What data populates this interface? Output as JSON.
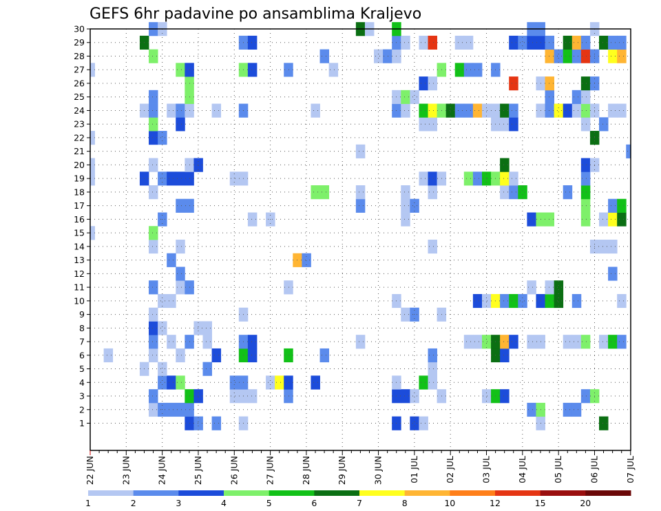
{
  "chart_data": {
    "type": "heatmap",
    "title": "GEFS 6hr padavine po ansamblima Kraljevo",
    "xlabel": "",
    "ylabel": "",
    "y_ticks": [
      "1",
      "2",
      "3",
      "4",
      "5",
      "6",
      "7",
      "8",
      "9",
      "10",
      "11",
      "12",
      "13",
      "14",
      "15",
      "16",
      "17",
      "18",
      "19",
      "20",
      "21",
      "22",
      "23",
      "24",
      "25",
      "26",
      "27",
      "28",
      "29",
      "30"
    ],
    "x_ticks": [
      "22 JUN",
      "23 JUN",
      "24 JUN",
      "25 JUN",
      "26 JUN",
      "27 JUN",
      "28 JUN",
      "29 JUN",
      "30 JUN",
      "01 JUL",
      "02 JUL",
      "03 JUL",
      "04 JUL",
      "05 JUL",
      "06 JUL",
      "07 JUL"
    ],
    "x_steps_per_day": 4,
    "x_range_steps": [
      0,
      60
    ],
    "y_range": [
      0,
      30
    ],
    "grid": true,
    "legend": "bottom",
    "legend_labels": [
      "1",
      "2",
      "3",
      "4",
      "5",
      "6",
      "7",
      "8",
      "10",
      "12",
      "15",
      "20"
    ],
    "color_scale": [
      "#b4c7f2",
      "#5b8bec",
      "#1c4cda",
      "#7ef06a",
      "#12c118",
      "#0b6f13",
      "#ffff1e",
      "#ffb533",
      "#ff7f1a",
      "#e53513",
      "#9a0f0f",
      "#6b0808"
    ],
    "cells_note": "each row: [member, time step, class] where class indexes color_scale",
    "cells": [
      [
        1,
        11,
        2
      ],
      [
        1,
        12,
        1
      ],
      [
        1,
        14,
        1
      ],
      [
        1,
        17,
        0
      ],
      [
        1,
        34,
        2
      ],
      [
        1,
        36,
        2
      ],
      [
        1,
        37,
        0
      ],
      [
        1,
        50,
        0
      ],
      [
        1,
        57,
        5
      ],
      [
        2,
        7,
        0
      ],
      [
        2,
        8,
        1
      ],
      [
        2,
        9,
        1
      ],
      [
        2,
        10,
        1
      ],
      [
        2,
        11,
        1
      ],
      [
        2,
        49,
        1
      ],
      [
        2,
        50,
        3
      ],
      [
        2,
        53,
        1
      ],
      [
        2,
        54,
        1
      ],
      [
        3,
        7,
        1
      ],
      [
        3,
        11,
        4
      ],
      [
        3,
        12,
        2
      ],
      [
        3,
        16,
        0
      ],
      [
        3,
        17,
        0
      ],
      [
        3,
        18,
        0
      ],
      [
        3,
        22,
        1
      ],
      [
        3,
        34,
        2
      ],
      [
        3,
        35,
        2
      ],
      [
        3,
        36,
        0
      ],
      [
        3,
        39,
        0
      ],
      [
        3,
        44,
        0
      ],
      [
        3,
        45,
        4
      ],
      [
        3,
        46,
        2
      ],
      [
        3,
        55,
        1
      ],
      [
        3,
        56,
        3
      ],
      [
        4,
        8,
        1
      ],
      [
        4,
        9,
        2
      ],
      [
        4,
        10,
        3
      ],
      [
        4,
        16,
        1
      ],
      [
        4,
        17,
        1
      ],
      [
        4,
        20,
        0
      ],
      [
        4,
        21,
        6
      ],
      [
        4,
        22,
        2
      ],
      [
        4,
        25,
        2
      ],
      [
        4,
        34,
        0
      ],
      [
        4,
        37,
        4
      ],
      [
        4,
        38,
        0
      ],
      [
        5,
        6,
        0
      ],
      [
        5,
        8,
        0
      ],
      [
        5,
        13,
        1
      ],
      [
        5,
        38,
        0
      ],
      [
        6,
        2,
        0
      ],
      [
        6,
        7,
        0
      ],
      [
        6,
        10,
        0
      ],
      [
        6,
        14,
        2
      ],
      [
        6,
        17,
        4
      ],
      [
        6,
        18,
        2
      ],
      [
        6,
        22,
        4
      ],
      [
        6,
        26,
        1
      ],
      [
        6,
        38,
        1
      ],
      [
        6,
        45,
        5
      ],
      [
        6,
        46,
        2
      ],
      [
        7,
        7,
        1
      ],
      [
        7,
        9,
        0
      ],
      [
        7,
        11,
        1
      ],
      [
        7,
        13,
        0
      ],
      [
        7,
        17,
        1
      ],
      [
        7,
        18,
        2
      ],
      [
        7,
        30,
        0
      ],
      [
        7,
        42,
        0
      ],
      [
        7,
        43,
        0
      ],
      [
        7,
        44,
        3
      ],
      [
        7,
        45,
        5
      ],
      [
        7,
        46,
        7
      ],
      [
        7,
        47,
        2
      ],
      [
        7,
        49,
        0
      ],
      [
        7,
        50,
        0
      ],
      [
        7,
        53,
        0
      ],
      [
        7,
        54,
        0
      ],
      [
        7,
        55,
        3
      ],
      [
        7,
        57,
        0
      ],
      [
        7,
        58,
        4
      ],
      [
        7,
        59,
        1
      ],
      [
        8,
        7,
        2
      ],
      [
        8,
        8,
        0
      ],
      [
        8,
        12,
        0
      ],
      [
        8,
        13,
        0
      ],
      [
        9,
        7,
        0
      ],
      [
        9,
        17,
        0
      ],
      [
        9,
        35,
        0
      ],
      [
        9,
        36,
        1
      ],
      [
        9,
        39,
        0
      ],
      [
        10,
        8,
        0
      ],
      [
        10,
        9,
        0
      ],
      [
        10,
        34,
        0
      ],
      [
        10,
        43,
        2
      ],
      [
        10,
        44,
        0
      ],
      [
        10,
        45,
        6
      ],
      [
        10,
        46,
        1
      ],
      [
        10,
        47,
        4
      ],
      [
        10,
        48,
        1
      ],
      [
        10,
        50,
        2
      ],
      [
        10,
        51,
        4
      ],
      [
        10,
        52,
        5
      ],
      [
        10,
        54,
        1
      ],
      [
        10,
        59,
        0
      ],
      [
        11,
        7,
        1
      ],
      [
        11,
        10,
        0
      ],
      [
        11,
        11,
        1
      ],
      [
        11,
        22,
        0
      ],
      [
        11,
        49,
        0
      ],
      [
        11,
        51,
        0
      ],
      [
        11,
        52,
        5
      ],
      [
        12,
        10,
        1
      ],
      [
        12,
        58,
        1
      ],
      [
        13,
        9,
        1
      ],
      [
        13,
        23,
        7
      ],
      [
        13,
        24,
        1
      ],
      [
        14,
        7,
        0
      ],
      [
        14,
        10,
        0
      ],
      [
        14,
        38,
        0
      ],
      [
        14,
        56,
        0
      ],
      [
        14,
        57,
        0
      ],
      [
        14,
        58,
        0
      ],
      [
        15,
        0,
        0
      ],
      [
        15,
        7,
        3
      ],
      [
        16,
        8,
        1
      ],
      [
        16,
        18,
        0
      ],
      [
        16,
        20,
        0
      ],
      [
        16,
        35,
        0
      ],
      [
        16,
        49,
        2
      ],
      [
        16,
        50,
        3
      ],
      [
        16,
        51,
        3
      ],
      [
        16,
        55,
        3
      ],
      [
        16,
        57,
        0
      ],
      [
        16,
        58,
        6
      ],
      [
        16,
        59,
        5
      ],
      [
        17,
        10,
        1
      ],
      [
        17,
        11,
        1
      ],
      [
        17,
        30,
        1
      ],
      [
        17,
        35,
        0
      ],
      [
        17,
        36,
        1
      ],
      [
        17,
        55,
        3
      ],
      [
        17,
        58,
        1
      ],
      [
        17,
        59,
        4
      ],
      [
        18,
        7,
        0
      ],
      [
        18,
        25,
        3
      ],
      [
        18,
        26,
        3
      ],
      [
        18,
        30,
        0
      ],
      [
        18,
        35,
        0
      ],
      [
        18,
        38,
        0
      ],
      [
        18,
        46,
        0
      ],
      [
        18,
        47,
        1
      ],
      [
        18,
        48,
        4
      ],
      [
        18,
        53,
        1
      ],
      [
        18,
        55,
        4
      ],
      [
        19,
        0,
        0
      ],
      [
        19,
        6,
        2
      ],
      [
        19,
        8,
        1
      ],
      [
        19,
        9,
        2
      ],
      [
        19,
        10,
        2
      ],
      [
        19,
        11,
        2
      ],
      [
        19,
        16,
        0
      ],
      [
        19,
        17,
        0
      ],
      [
        19,
        37,
        0
      ],
      [
        19,
        38,
        2
      ],
      [
        19,
        39,
        0
      ],
      [
        19,
        42,
        3
      ],
      [
        19,
        43,
        1
      ],
      [
        19,
        44,
        4
      ],
      [
        19,
        45,
        3
      ],
      [
        19,
        46,
        6
      ],
      [
        19,
        47,
        0
      ],
      [
        19,
        55,
        1
      ],
      [
        20,
        0,
        0
      ],
      [
        20,
        7,
        0
      ],
      [
        20,
        11,
        0
      ],
      [
        20,
        12,
        2
      ],
      [
        20,
        46,
        5
      ],
      [
        20,
        55,
        2
      ],
      [
        20,
        56,
        0
      ],
      [
        21,
        30,
        0
      ],
      [
        21,
        60,
        1
      ],
      [
        22,
        0,
        0
      ],
      [
        22,
        7,
        2
      ],
      [
        22,
        8,
        1
      ],
      [
        22,
        56,
        5
      ],
      [
        23,
        7,
        3
      ],
      [
        23,
        10,
        2
      ],
      [
        23,
        37,
        0
      ],
      [
        23,
        38,
        0
      ],
      [
        23,
        45,
        0
      ],
      [
        23,
        46,
        0
      ],
      [
        23,
        47,
        2
      ],
      [
        23,
        55,
        0
      ],
      [
        23,
        57,
        1
      ],
      [
        24,
        6,
        0
      ],
      [
        24,
        7,
        1
      ],
      [
        24,
        9,
        0
      ],
      [
        24,
        10,
        1
      ],
      [
        24,
        11,
        0
      ],
      [
        24,
        14,
        0
      ],
      [
        24,
        17,
        1
      ],
      [
        24,
        25,
        0
      ],
      [
        24,
        34,
        1
      ],
      [
        24,
        35,
        0
      ],
      [
        24,
        37,
        4
      ],
      [
        24,
        38,
        6
      ],
      [
        24,
        39,
        3
      ],
      [
        24,
        40,
        5
      ],
      [
        24,
        41,
        1
      ],
      [
        24,
        42,
        1
      ],
      [
        24,
        43,
        7
      ],
      [
        24,
        44,
        0
      ],
      [
        24,
        45,
        0
      ],
      [
        24,
        46,
        5
      ],
      [
        24,
        47,
        1
      ],
      [
        24,
        50,
        0
      ],
      [
        24,
        51,
        1
      ],
      [
        24,
        52,
        6
      ],
      [
        24,
        53,
        2
      ],
      [
        24,
        54,
        0
      ],
      [
        24,
        55,
        3
      ],
      [
        24,
        56,
        0
      ],
      [
        24,
        58,
        0
      ],
      [
        24,
        59,
        0
      ],
      [
        25,
        7,
        1
      ],
      [
        25,
        11,
        3
      ],
      [
        25,
        34,
        0
      ],
      [
        25,
        35,
        3
      ],
      [
        25,
        36,
        0
      ],
      [
        25,
        51,
        1
      ],
      [
        25,
        54,
        1
      ],
      [
        25,
        55,
        0
      ],
      [
        26,
        11,
        3
      ],
      [
        26,
        37,
        2
      ],
      [
        26,
        38,
        0
      ],
      [
        26,
        47,
        9
      ],
      [
        26,
        50,
        0
      ],
      [
        26,
        51,
        7
      ],
      [
        26,
        55,
        5
      ],
      [
        26,
        56,
        1
      ],
      [
        27,
        0,
        0
      ],
      [
        27,
        10,
        3
      ],
      [
        27,
        11,
        2
      ],
      [
        27,
        17,
        3
      ],
      [
        27,
        18,
        2
      ],
      [
        27,
        22,
        1
      ],
      [
        27,
        27,
        0
      ],
      [
        27,
        39,
        3
      ],
      [
        27,
        41,
        4
      ],
      [
        27,
        42,
        1
      ],
      [
        27,
        43,
        1
      ],
      [
        27,
        45,
        1
      ],
      [
        28,
        7,
        3
      ],
      [
        28,
        26,
        1
      ],
      [
        28,
        32,
        0
      ],
      [
        28,
        33,
        1
      ],
      [
        28,
        34,
        0
      ],
      [
        28,
        51,
        7
      ],
      [
        28,
        52,
        1
      ],
      [
        28,
        53,
        4
      ],
      [
        28,
        54,
        1
      ],
      [
        28,
        55,
        9
      ],
      [
        28,
        56,
        1
      ],
      [
        28,
        58,
        6
      ],
      [
        28,
        59,
        7
      ],
      [
        29,
        6,
        5
      ],
      [
        29,
        17,
        1
      ],
      [
        29,
        18,
        2
      ],
      [
        29,
        34,
        1
      ],
      [
        29,
        35,
        0
      ],
      [
        29,
        37,
        0
      ],
      [
        29,
        38,
        9
      ],
      [
        29,
        41,
        0
      ],
      [
        29,
        42,
        0
      ],
      [
        29,
        47,
        2
      ],
      [
        29,
        48,
        1
      ],
      [
        29,
        49,
        2
      ],
      [
        29,
        50,
        2
      ],
      [
        29,
        51,
        1
      ],
      [
        29,
        53,
        5
      ],
      [
        29,
        54,
        7
      ],
      [
        29,
        55,
        1
      ],
      [
        29,
        57,
        5
      ],
      [
        29,
        58,
        1
      ],
      [
        29,
        59,
        1
      ],
      [
        30,
        7,
        1
      ],
      [
        30,
        8,
        0
      ],
      [
        30,
        30,
        5
      ],
      [
        30,
        31,
        0
      ],
      [
        30,
        34,
        4
      ],
      [
        30,
        49,
        1
      ],
      [
        30,
        50,
        1
      ],
      [
        30,
        56,
        0
      ]
    ]
  }
}
